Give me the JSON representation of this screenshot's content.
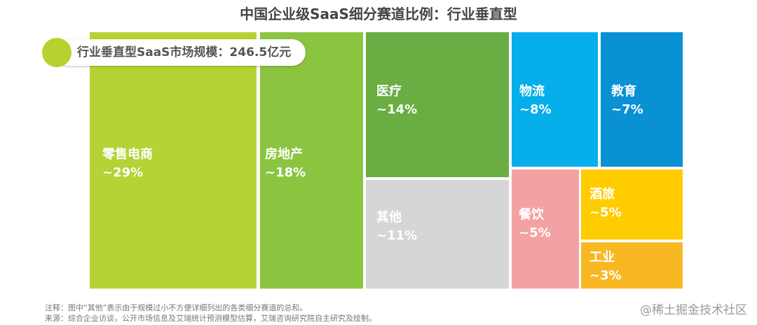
{
  "title": "中国企业级SaaS细分赛道比例：行业垂直型",
  "badge_text": "行业垂直型SaaS市场规模：246.5亿元",
  "chart_data": {
    "type": "treemap",
    "title": "中国企业级SaaS细分赛道比例：行业垂直型",
    "total_label": "行业垂直型SaaS市场规模：246.5亿元",
    "segments": [
      {
        "name": "零售电商",
        "label": "~29%",
        "value": 29,
        "color": "#b5d334"
      },
      {
        "name": "房地产",
        "label": "~18%",
        "value": 18,
        "color": "#8bc540"
      },
      {
        "name": "医疗",
        "label": "~14%",
        "value": 14,
        "color": "#6aad43"
      },
      {
        "name": "其他",
        "label": "~11%",
        "value": 11,
        "color": "#d6d6d6"
      },
      {
        "name": "物流",
        "label": "~8%",
        "value": 8,
        "color": "#06aeea"
      },
      {
        "name": "教育",
        "label": "~7%",
        "value": 7,
        "color": "#0a91d4"
      },
      {
        "name": "餐饮",
        "label": "~5%",
        "value": 5,
        "color": "#f2a2a2"
      },
      {
        "name": "酒旅",
        "label": "~5%",
        "value": 5,
        "color": "#ffcc00"
      },
      {
        "name": "工业",
        "label": "~3%",
        "value": 3,
        "color": "#f7b823"
      }
    ]
  },
  "notes": [
    "注释：图中“其他”表示由于规模过小不方便详细列出的各类细分赛道的总和。",
    "来源：综合企业访谈，公开市场信息及艾瑞统计预测模型估算，艾瑞咨询研究院自主研究及绘制。"
  ],
  "watermark": "@稀土掘金技术社区"
}
